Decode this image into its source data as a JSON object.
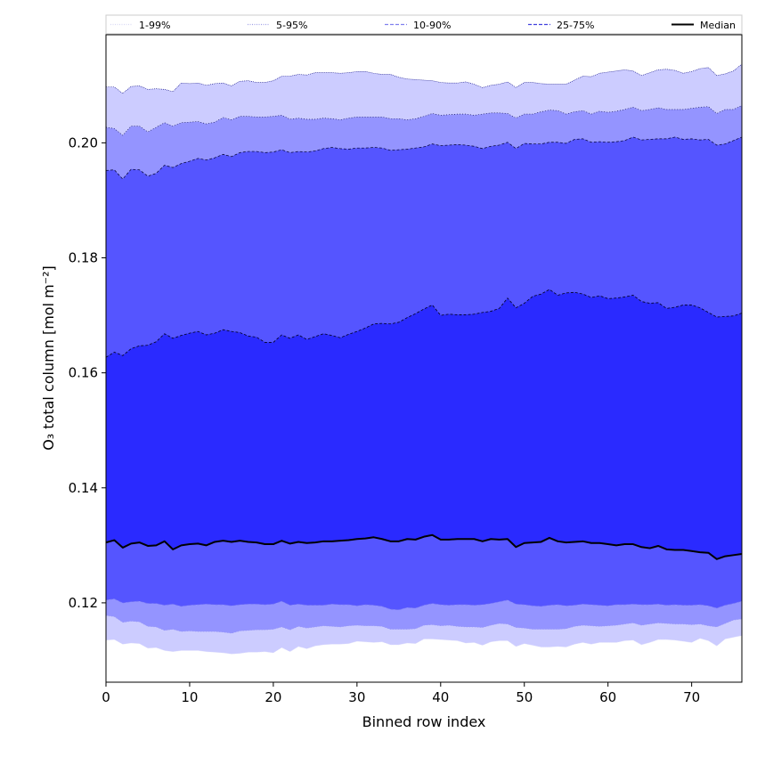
{
  "chart_data": {
    "type": "area",
    "title": "",
    "xlabel": "Binned row index",
    "ylabel": "O₃ total column [mol m⁻²]",
    "xlim": [
      0,
      76
    ],
    "ylim": [
      0.1062,
      0.2188
    ],
    "x_ticks": [
      0,
      10,
      20,
      30,
      40,
      50,
      60,
      70
    ],
    "y_ticks": [
      0.12,
      0.14,
      0.16,
      0.18,
      0.2
    ],
    "y_tick_labels": [
      "0.12",
      "0.14",
      "0.16",
      "0.18",
      "0.20"
    ],
    "legend": [
      {
        "label": "1-99%",
        "style": "dotted",
        "color": "#d8d8f4"
      },
      {
        "label": "5-95%",
        "style": "dotted",
        "color": "#a0a0e6"
      },
      {
        "label": "10-90%",
        "style": "dashed",
        "color": "#8080ee"
      },
      {
        "label": "25-75%",
        "style": "dashed",
        "color": "#4040dd"
      },
      {
        "label": "Median",
        "style": "solid",
        "color": "#000000"
      }
    ],
    "legend_position": "top",
    "colors": {
      "band_1_99": "#ccccff",
      "band_5_95": "#9494ff",
      "band_10_90": "#5555ff",
      "band_25_75": "#2a2aff",
      "median": "#000000"
    },
    "x": [
      0,
      1,
      2,
      3,
      4,
      5,
      6,
      7,
      8,
      9,
      10,
      11,
      12,
      13,
      14,
      15,
      16,
      17,
      18,
      19,
      20,
      21,
      22,
      23,
      24,
      25,
      26,
      27,
      28,
      29,
      30,
      31,
      32,
      33,
      34,
      35,
      36,
      37,
      38,
      39,
      40,
      41,
      42,
      43,
      44,
      45,
      46,
      47,
      48,
      49,
      50,
      51,
      52,
      53,
      54,
      55,
      56,
      57,
      58,
      59,
      60,
      61,
      62,
      63,
      64,
      65,
      66,
      67,
      68,
      69,
      70,
      71,
      72,
      73,
      74,
      75,
      76
    ],
    "series": [
      {
        "name": "p1",
        "values": [
          0.1135,
          0.1136,
          0.1128,
          0.113,
          0.1129,
          0.1121,
          0.1122,
          0.1117,
          0.1115,
          0.1117,
          0.1117,
          0.1117,
          0.1115,
          0.1114,
          0.1113,
          0.1111,
          0.1112,
          0.1114,
          0.1114,
          0.1115,
          0.1113,
          0.1122,
          0.1115,
          0.1124,
          0.112,
          0.1125,
          0.1127,
          0.1128,
          0.1128,
          0.1129,
          0.1133,
          0.1132,
          0.1131,
          0.1132,
          0.1127,
          0.1127,
          0.113,
          0.1129,
          0.1137,
          0.1137,
          0.1136,
          0.1135,
          0.1134,
          0.113,
          0.1131,
          0.1126,
          0.1132,
          0.1134,
          0.1134,
          0.1124,
          0.1129,
          0.1126,
          0.1123,
          0.1123,
          0.1124,
          0.1123,
          0.1128,
          0.1131,
          0.1128,
          0.1131,
          0.1131,
          0.1131,
          0.1134,
          0.1135,
          0.1127,
          0.1131,
          0.1136,
          0.1136,
          0.1135,
          0.1133,
          0.1131,
          0.1138,
          0.1134,
          0.1125,
          0.1137,
          0.114,
          0.1143
        ]
      },
      {
        "name": "p5",
        "values": [
          0.1178,
          0.1176,
          0.1166,
          0.1168,
          0.1167,
          0.1159,
          0.1158,
          0.1152,
          0.1154,
          0.115,
          0.1151,
          0.115,
          0.115,
          0.115,
          0.1149,
          0.1147,
          0.1151,
          0.1152,
          0.1153,
          0.1153,
          0.1154,
          0.1158,
          0.1153,
          0.1159,
          0.1156,
          0.1158,
          0.116,
          0.1159,
          0.1158,
          0.116,
          0.1161,
          0.116,
          0.116,
          0.1159,
          0.1154,
          0.1154,
          0.1154,
          0.1155,
          0.1161,
          0.1162,
          0.116,
          0.1161,
          0.1159,
          0.1158,
          0.1158,
          0.1157,
          0.1161,
          0.1164,
          0.1163,
          0.1157,
          0.1156,
          0.1154,
          0.1154,
          0.1154,
          0.1154,
          0.1155,
          0.1159,
          0.1161,
          0.116,
          0.1159,
          0.116,
          0.1161,
          0.1163,
          0.1165,
          0.1161,
          0.1163,
          0.1165,
          0.1164,
          0.1163,
          0.1163,
          0.1162,
          0.1163,
          0.116,
          0.1158,
          0.1164,
          0.117,
          0.1172
        ]
      },
      {
        "name": "p10",
        "values": [
          0.1205,
          0.1207,
          0.12,
          0.1202,
          0.1203,
          0.1199,
          0.1199,
          0.1196,
          0.1198,
          0.1194,
          0.1196,
          0.1197,
          0.1198,
          0.1197,
          0.1197,
          0.1195,
          0.1197,
          0.1198,
          0.1198,
          0.1197,
          0.1198,
          0.1203,
          0.1196,
          0.1198,
          0.1196,
          0.1196,
          0.1196,
          0.1198,
          0.1197,
          0.1197,
          0.1195,
          0.1197,
          0.1196,
          0.1194,
          0.1189,
          0.1188,
          0.1192,
          0.1191,
          0.1196,
          0.1199,
          0.1197,
          0.1196,
          0.1197,
          0.1197,
          0.1196,
          0.1197,
          0.1199,
          0.1202,
          0.1205,
          0.1198,
          0.1197,
          0.1195,
          0.1194,
          0.1196,
          0.1197,
          0.1195,
          0.1196,
          0.1198,
          0.1197,
          0.1196,
          0.1195,
          0.1197,
          0.1197,
          0.1198,
          0.1197,
          0.1197,
          0.1198,
          0.1196,
          0.1197,
          0.1196,
          0.1196,
          0.1197,
          0.1195,
          0.1191,
          0.1196,
          0.1199,
          0.1203
        ]
      },
      {
        "name": "p25",
        "values": [
          0.1305,
          0.1309,
          0.1296,
          0.1303,
          0.1305,
          0.1299,
          0.13,
          0.1307,
          0.1293,
          0.13,
          0.1302,
          0.1303,
          0.13,
          0.1306,
          0.1308,
          0.1306,
          0.1308,
          0.1306,
          0.1305,
          0.1302,
          0.1302,
          0.1308,
          0.1303,
          0.1306,
          0.1304,
          0.1305,
          0.1307,
          0.1307,
          0.1308,
          0.1309,
          0.1311,
          0.1312,
          0.1314,
          0.1311,
          0.1307,
          0.1307,
          0.1311,
          0.131,
          0.1315,
          0.1318,
          0.131,
          0.131,
          0.1311,
          0.1311,
          0.1311,
          0.1307,
          0.1311,
          0.131,
          0.1311,
          0.1297,
          0.1304,
          0.1305,
          0.1306,
          0.1313,
          0.1307,
          0.1305,
          0.1306,
          0.1307,
          0.1304,
          0.1304,
          0.1302,
          0.13,
          0.1302,
          0.1302,
          0.1297,
          0.1295,
          0.1299,
          0.1293,
          0.1292,
          0.1292,
          0.129,
          0.1288,
          0.1287,
          0.1276,
          0.1281,
          0.1283,
          0.1285
        ]
      },
      {
        "name": "median",
        "values": [
          0.1305,
          0.1309,
          0.1296,
          0.1303,
          0.1305,
          0.1299,
          0.13,
          0.1307,
          0.1293,
          0.13,
          0.1302,
          0.1303,
          0.13,
          0.1306,
          0.1308,
          0.1306,
          0.1308,
          0.1306,
          0.1305,
          0.1302,
          0.1302,
          0.1308,
          0.1303,
          0.1306,
          0.1304,
          0.1305,
          0.1307,
          0.1307,
          0.1308,
          0.1309,
          0.1311,
          0.1312,
          0.1314,
          0.1311,
          0.1307,
          0.1307,
          0.1311,
          0.131,
          0.1315,
          0.1318,
          0.131,
          0.131,
          0.1311,
          0.1311,
          0.1311,
          0.1307,
          0.1311,
          0.131,
          0.1311,
          0.1297,
          0.1304,
          0.1305,
          0.1306,
          0.1313,
          0.1307,
          0.1305,
          0.1306,
          0.1307,
          0.1304,
          0.1304,
          0.1302,
          0.13,
          0.1302,
          0.1302,
          0.1297,
          0.1295,
          0.1299,
          0.1293,
          0.1292,
          0.1292,
          0.129,
          0.1288,
          0.1287,
          0.1276,
          0.1281,
          0.1283,
          0.1285
        ]
      },
      {
        "name": "p75",
        "values": [
          0.1627,
          0.1636,
          0.163,
          0.1642,
          0.1647,
          0.1648,
          0.1654,
          0.1668,
          0.166,
          0.1665,
          0.1669,
          0.1672,
          0.1666,
          0.1669,
          0.1675,
          0.1672,
          0.167,
          0.1664,
          0.1662,
          0.1653,
          0.1653,
          0.1666,
          0.166,
          0.1666,
          0.1658,
          0.1663,
          0.1668,
          0.1665,
          0.1661,
          0.1667,
          0.1672,
          0.1678,
          0.1685,
          0.1686,
          0.1685,
          0.1688,
          0.1696,
          0.1703,
          0.1711,
          0.1718,
          0.17,
          0.1702,
          0.1701,
          0.1701,
          0.1702,
          0.1705,
          0.1707,
          0.1712,
          0.173,
          0.1713,
          0.1721,
          0.1733,
          0.1737,
          0.1745,
          0.1735,
          0.1739,
          0.174,
          0.1737,
          0.1731,
          0.1734,
          0.1729,
          0.173,
          0.1732,
          0.1735,
          0.1724,
          0.1721,
          0.1722,
          0.1712,
          0.1714,
          0.1718,
          0.1718,
          0.1713,
          0.1705,
          0.1697,
          0.1698,
          0.1699,
          0.1704
        ]
      },
      {
        "name": "p90",
        "values": [
          0.1952,
          0.1953,
          0.1937,
          0.1954,
          0.1953,
          0.1942,
          0.1947,
          0.1961,
          0.1957,
          0.1964,
          0.1968,
          0.1973,
          0.197,
          0.1974,
          0.198,
          0.1976,
          0.1983,
          0.1985,
          0.1985,
          0.1983,
          0.1984,
          0.1988,
          0.1983,
          0.1985,
          0.1984,
          0.1986,
          0.199,
          0.1992,
          0.199,
          0.1989,
          0.1991,
          0.1991,
          0.1992,
          0.1991,
          0.1987,
          0.1988,
          0.1989,
          0.1991,
          0.1993,
          0.1998,
          0.1995,
          0.1996,
          0.1997,
          0.1996,
          0.1994,
          0.199,
          0.1994,
          0.1996,
          0.2001,
          0.199,
          0.1999,
          0.1998,
          0.1998,
          0.2001,
          0.2001,
          0.1999,
          0.2006,
          0.2007,
          0.2001,
          0.2002,
          0.2001,
          0.2002,
          0.2004,
          0.201,
          0.2005,
          0.2006,
          0.2007,
          0.2007,
          0.201,
          0.2006,
          0.2007,
          0.2005,
          0.2006,
          0.1996,
          0.1998,
          0.2004,
          0.201
        ]
      },
      {
        "name": "p95",
        "values": [
          0.2027,
          0.2025,
          0.2013,
          0.2029,
          0.2029,
          0.2019,
          0.2027,
          0.2035,
          0.2029,
          0.2035,
          0.2036,
          0.2037,
          0.2033,
          0.2036,
          0.2044,
          0.204,
          0.2046,
          0.2046,
          0.2045,
          0.2045,
          0.2046,
          0.2048,
          0.2041,
          0.2043,
          0.2041,
          0.2041,
          0.2043,
          0.2042,
          0.204,
          0.2043,
          0.2045,
          0.2045,
          0.2045,
          0.2045,
          0.2042,
          0.2042,
          0.204,
          0.2042,
          0.2046,
          0.2051,
          0.2048,
          0.2049,
          0.205,
          0.205,
          0.2048,
          0.205,
          0.2052,
          0.2052,
          0.2051,
          0.2043,
          0.205,
          0.205,
          0.2054,
          0.2057,
          0.2056,
          0.205,
          0.2054,
          0.2056,
          0.205,
          0.2055,
          0.2053,
          0.2055,
          0.2058,
          0.2062,
          0.2056,
          0.2058,
          0.2061,
          0.2058,
          0.2058,
          0.2058,
          0.206,
          0.2062,
          0.2063,
          0.2051,
          0.2058,
          0.2058,
          0.2065
        ]
      },
      {
        "name": "p99",
        "values": [
          0.2097,
          0.2097,
          0.2086,
          0.2098,
          0.2099,
          0.2093,
          0.2094,
          0.2093,
          0.2089,
          0.2104,
          0.2103,
          0.2104,
          0.21,
          0.2103,
          0.2104,
          0.2099,
          0.2107,
          0.2108,
          0.2105,
          0.2105,
          0.2108,
          0.2116,
          0.2116,
          0.2119,
          0.2118,
          0.2122,
          0.2122,
          0.2122,
          0.2121,
          0.2122,
          0.2124,
          0.2124,
          0.2121,
          0.2119,
          0.2119,
          0.2114,
          0.2111,
          0.211,
          0.2109,
          0.2108,
          0.2105,
          0.2104,
          0.2104,
          0.2106,
          0.2102,
          0.2096,
          0.21,
          0.2102,
          0.2106,
          0.2096,
          0.2105,
          0.2105,
          0.2103,
          0.2102,
          0.2102,
          0.2102,
          0.2109,
          0.2116,
          0.2115,
          0.2121,
          0.2123,
          0.2125,
          0.2127,
          0.2125,
          0.2117,
          0.2122,
          0.2127,
          0.2128,
          0.2126,
          0.2121,
          0.2124,
          0.2129,
          0.2131,
          0.2117,
          0.212,
          0.2125,
          0.2137
        ]
      }
    ]
  }
}
